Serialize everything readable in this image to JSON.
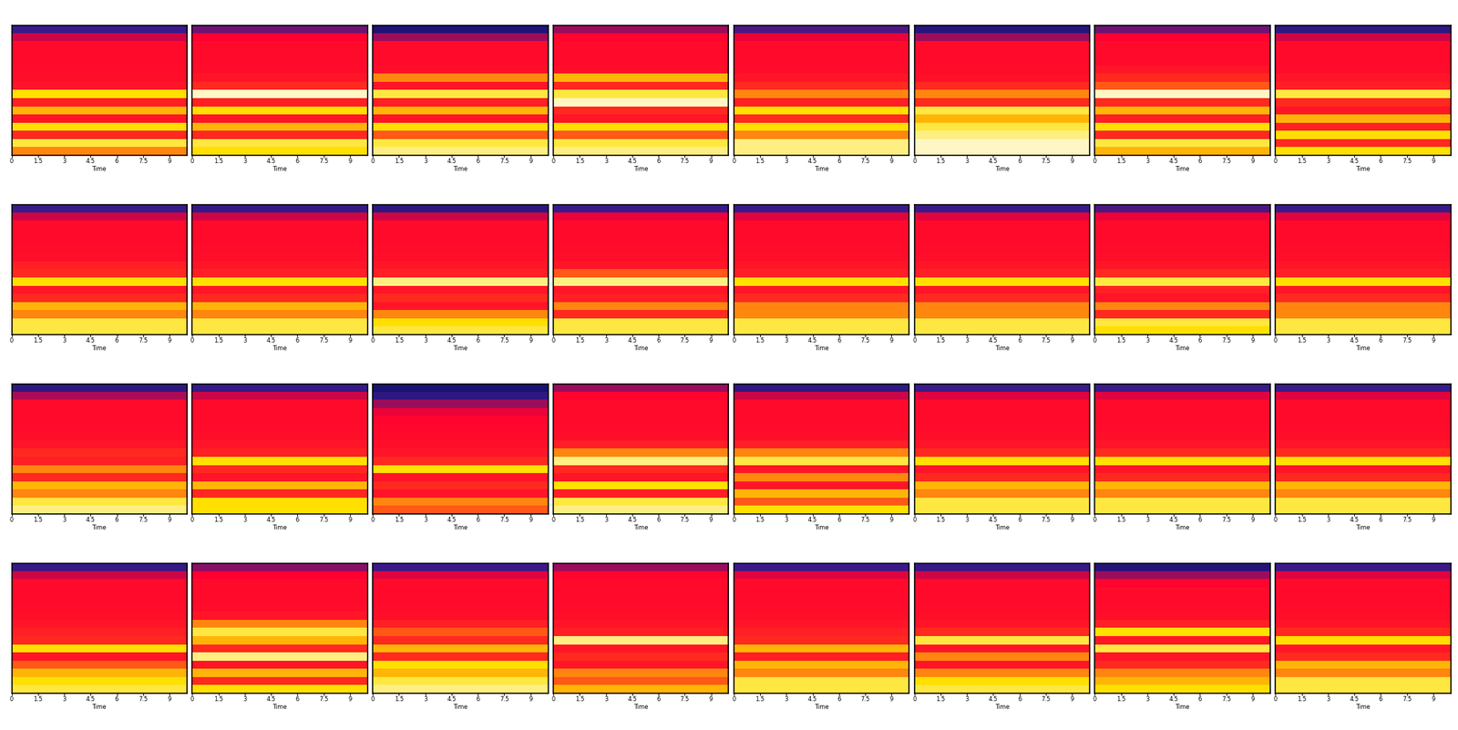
{
  "chart_data": {
    "type": "heatmap",
    "xlabel": "Time",
    "xlim": [
      0,
      10
    ],
    "xticks": [
      0,
      1.5,
      3,
      4.5,
      6,
      7.5,
      9
    ],
    "tick_labels": "x",
    "clim": [
      0,
      1
    ],
    "panels": [
      {
        "cells": [
          0.2,
          0.35,
          0.45,
          0.45,
          0.45,
          0.46,
          0.47,
          0.5,
          0.8,
          0.55,
          0.75,
          0.5,
          0.8,
          0.6,
          0.85,
          0.7
        ]
      },
      {
        "cells": [
          0.25,
          0.4,
          0.45,
          0.45,
          0.45,
          0.46,
          0.5,
          0.6,
          0.95,
          0.55,
          0.8,
          0.5,
          0.75,
          0.6,
          0.85,
          0.8
        ]
      },
      {
        "cells": [
          0.08,
          0.3,
          0.45,
          0.45,
          0.45,
          0.47,
          0.7,
          0.5,
          0.85,
          0.55,
          0.75,
          0.5,
          0.8,
          0.65,
          0.85,
          0.9
        ]
      },
      {
        "cells": [
          0.3,
          0.42,
          0.45,
          0.45,
          0.45,
          0.47,
          0.75,
          0.6,
          0.85,
          0.95,
          0.6,
          0.5,
          0.8,
          0.65,
          0.85,
          0.9
        ]
      },
      {
        "cells": [
          0.22,
          0.38,
          0.45,
          0.45,
          0.45,
          0.46,
          0.5,
          0.6,
          0.7,
          0.55,
          0.8,
          0.6,
          0.8,
          0.7,
          0.9,
          0.9
        ]
      },
      {
        "cells": [
          0.12,
          0.3,
          0.45,
          0.45,
          0.45,
          0.46,
          0.48,
          0.6,
          0.7,
          0.6,
          0.85,
          0.75,
          0.85,
          0.9,
          0.95,
          0.95
        ]
      },
      {
        "cells": [
          0.25,
          0.4,
          0.45,
          0.45,
          0.45,
          0.5,
          0.6,
          0.65,
          0.95,
          0.6,
          0.75,
          0.55,
          0.8,
          0.6,
          0.85,
          0.75
        ]
      },
      {
        "cells": [
          0.15,
          0.35,
          0.45,
          0.45,
          0.45,
          0.46,
          0.5,
          0.55,
          0.85,
          0.6,
          0.5,
          0.75,
          0.55,
          0.8,
          0.6,
          0.8
        ]
      },
      {
        "cells": [
          0.2,
          0.35,
          0.45,
          0.45,
          0.45,
          0.46,
          0.47,
          0.55,
          0.6,
          0.8,
          0.5,
          0.6,
          0.75,
          0.7,
          0.85,
          0.85
        ]
      },
      {
        "cells": [
          0.18,
          0.35,
          0.45,
          0.45,
          0.45,
          0.46,
          0.47,
          0.5,
          0.55,
          0.8,
          0.5,
          0.6,
          0.75,
          0.7,
          0.85,
          0.85
        ]
      },
      {
        "cells": [
          0.15,
          0.35,
          0.45,
          0.45,
          0.45,
          0.46,
          0.47,
          0.5,
          0.55,
          0.9,
          0.5,
          0.6,
          0.5,
          0.7,
          0.8,
          0.85
        ]
      },
      {
        "cells": [
          0.2,
          0.38,
          0.45,
          0.45,
          0.45,
          0.46,
          0.47,
          0.5,
          0.65,
          0.9,
          0.5,
          0.55,
          0.7,
          0.6,
          0.85,
          0.85
        ]
      },
      {
        "cells": [
          0.2,
          0.37,
          0.45,
          0.45,
          0.45,
          0.46,
          0.47,
          0.5,
          0.55,
          0.8,
          0.5,
          0.6,
          0.7,
          0.7,
          0.85,
          0.85
        ]
      },
      {
        "cells": [
          0.2,
          0.37,
          0.45,
          0.45,
          0.45,
          0.46,
          0.47,
          0.5,
          0.55,
          0.8,
          0.5,
          0.6,
          0.7,
          0.7,
          0.85,
          0.85
        ]
      },
      {
        "cells": [
          0.22,
          0.38,
          0.45,
          0.45,
          0.45,
          0.46,
          0.47,
          0.5,
          0.6,
          0.85,
          0.55,
          0.5,
          0.7,
          0.6,
          0.85,
          0.8
        ]
      },
      {
        "cells": [
          0.2,
          0.37,
          0.45,
          0.45,
          0.45,
          0.46,
          0.47,
          0.5,
          0.55,
          0.8,
          0.5,
          0.6,
          0.7,
          0.7,
          0.85,
          0.85
        ]
      },
      {
        "cells": [
          0.15,
          0.32,
          0.45,
          0.45,
          0.45,
          0.46,
          0.47,
          0.5,
          0.6,
          0.55,
          0.7,
          0.6,
          0.75,
          0.7,
          0.85,
          0.9
        ]
      },
      {
        "cells": [
          0.18,
          0.35,
          0.45,
          0.45,
          0.45,
          0.46,
          0.47,
          0.5,
          0.55,
          0.8,
          0.6,
          0.5,
          0.75,
          0.6,
          0.8,
          0.8
        ]
      },
      {
        "cells": [
          0.05,
          0.15,
          0.3,
          0.38,
          0.42,
          0.44,
          0.45,
          0.47,
          0.5,
          0.6,
          0.8,
          0.5,
          0.6,
          0.5,
          0.7,
          0.65
        ]
      },
      {
        "cells": [
          0.3,
          0.42,
          0.45,
          0.45,
          0.45,
          0.46,
          0.47,
          0.55,
          0.7,
          0.9,
          0.6,
          0.5,
          0.8,
          0.55,
          0.85,
          0.9
        ]
      },
      {
        "cells": [
          0.15,
          0.35,
          0.45,
          0.45,
          0.45,
          0.46,
          0.47,
          0.55,
          0.7,
          0.85,
          0.5,
          0.7,
          0.5,
          0.75,
          0.65,
          0.8
        ]
      },
      {
        "cells": [
          0.2,
          0.37,
          0.45,
          0.45,
          0.45,
          0.46,
          0.47,
          0.5,
          0.6,
          0.8,
          0.5,
          0.6,
          0.75,
          0.7,
          0.85,
          0.85
        ]
      },
      {
        "cells": [
          0.2,
          0.37,
          0.45,
          0.45,
          0.45,
          0.46,
          0.47,
          0.5,
          0.6,
          0.8,
          0.5,
          0.6,
          0.75,
          0.7,
          0.85,
          0.85
        ]
      },
      {
        "cells": [
          0.2,
          0.37,
          0.45,
          0.45,
          0.45,
          0.46,
          0.47,
          0.5,
          0.6,
          0.8,
          0.5,
          0.6,
          0.75,
          0.7,
          0.85,
          0.85
        ]
      },
      {
        "cells": [
          0.18,
          0.35,
          0.45,
          0.45,
          0.45,
          0.46,
          0.47,
          0.5,
          0.55,
          0.6,
          0.8,
          0.5,
          0.65,
          0.75,
          0.8,
          0.85
        ]
      },
      {
        "cells": [
          0.28,
          0.4,
          0.45,
          0.45,
          0.45,
          0.46,
          0.5,
          0.7,
          0.85,
          0.75,
          0.6,
          0.9,
          0.5,
          0.75,
          0.6,
          0.8
        ]
      },
      {
        "cells": [
          0.2,
          0.37,
          0.45,
          0.45,
          0.45,
          0.46,
          0.47,
          0.55,
          0.65,
          0.6,
          0.75,
          0.6,
          0.8,
          0.75,
          0.85,
          0.9
        ]
      },
      {
        "cells": [
          0.3,
          0.42,
          0.45,
          0.45,
          0.45,
          0.46,
          0.47,
          0.5,
          0.55,
          0.9,
          0.5,
          0.6,
          0.5,
          0.7,
          0.65,
          0.75
        ]
      },
      {
        "cells": [
          0.2,
          0.37,
          0.45,
          0.45,
          0.45,
          0.46,
          0.47,
          0.5,
          0.55,
          0.6,
          0.75,
          0.55,
          0.75,
          0.7,
          0.85,
          0.85
        ]
      },
      {
        "cells": [
          0.18,
          0.35,
          0.45,
          0.45,
          0.45,
          0.46,
          0.47,
          0.5,
          0.6,
          0.85,
          0.5,
          0.7,
          0.5,
          0.7,
          0.8,
          0.85
        ]
      },
      {
        "cells": [
          0.1,
          0.3,
          0.42,
          0.45,
          0.45,
          0.46,
          0.47,
          0.55,
          0.8,
          0.5,
          0.85,
          0.5,
          0.6,
          0.7,
          0.75,
          0.8
        ]
      },
      {
        "cells": [
          0.2,
          0.37,
          0.45,
          0.45,
          0.45,
          0.46,
          0.47,
          0.5,
          0.6,
          0.8,
          0.5,
          0.6,
          0.75,
          0.7,
          0.85,
          0.85
        ]
      }
    ]
  }
}
